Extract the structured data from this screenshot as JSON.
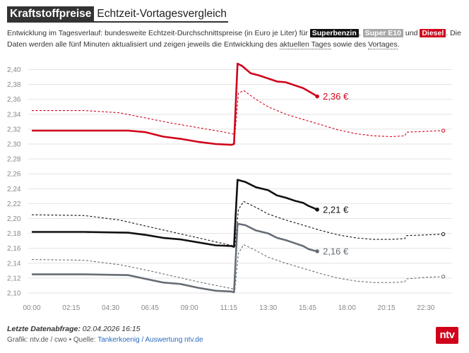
{
  "header": {
    "title_main": "Kraftstoffpreise",
    "title_sub": "Echtzeit-Vortagesvergleich"
  },
  "intro": {
    "text1": "Entwicklung im Tagesverlauf: bundesweite Echtzeit-Durchschnittspreise (in Euro je Liter) für ",
    "tag_super": "Superbenzin",
    "sep1": ", ",
    "tag_e10": "Super E10",
    "sep2": " und ",
    "tag_diesel": "Diesel",
    "text2": ". Die Daten werden alle fünf Minuten aktualisiert und zeigen jeweils die Entwicklung des ",
    "link_today": "aktuellen Tages",
    "text3": " sowie des ",
    "link_yesterday": "Vortages",
    "text4": "."
  },
  "colors": {
    "superbenzin": "#111111",
    "e10": "#666d75",
    "diesel": "#d0021b",
    "grid": "#e3e3e3",
    "axis_text": "#888888"
  },
  "chart_data": {
    "type": "line",
    "xlim": [
      0,
      24
    ],
    "ylim": [
      2.1,
      2.41
    ],
    "x_ticks": [
      0,
      2.25,
      4.5,
      6.75,
      9,
      11.25,
      13.5,
      15.75,
      18,
      20.25,
      22.5
    ],
    "x_tick_labels": [
      "00:00",
      "02:15",
      "04:30",
      "06:45",
      "09:00",
      "11:15",
      "13:30",
      "15:45",
      "18:00",
      "20:15",
      "22:30"
    ],
    "y_ticks": [
      2.1,
      2.12,
      2.14,
      2.16,
      2.18,
      2.2,
      2.22,
      2.24,
      2.26,
      2.28,
      2.3,
      2.32,
      2.34,
      2.36,
      2.38,
      2.4
    ],
    "y_tick_labels": [
      "2,10",
      "2,12",
      "2,14",
      "2,16",
      "2,18",
      "2,20",
      "2,22",
      "2,24",
      "2,26",
      "2,28",
      "2,30",
      "2,32",
      "2,34",
      "2,36",
      "2,38",
      "2,40"
    ],
    "series": [
      {
        "key": "diesel",
        "day": "today",
        "style": "solid",
        "end_label": "2,36 €",
        "points": [
          [
            0,
            2.318
          ],
          [
            3,
            2.318
          ],
          [
            5.5,
            2.318
          ],
          [
            6.5,
            2.316
          ],
          [
            7.5,
            2.31
          ],
          [
            8.5,
            2.307
          ],
          [
            9.5,
            2.303
          ],
          [
            10.5,
            2.3
          ],
          [
            11.4,
            2.299
          ],
          [
            11.55,
            2.3
          ],
          [
            11.75,
            2.408
          ],
          [
            12,
            2.405
          ],
          [
            12.5,
            2.395
          ],
          [
            13,
            2.392
          ],
          [
            13.5,
            2.388
          ],
          [
            14,
            2.384
          ],
          [
            14.5,
            2.383
          ],
          [
            15,
            2.379
          ],
          [
            15.5,
            2.375
          ],
          [
            15.8,
            2.371
          ],
          [
            16.1,
            2.367
          ],
          [
            16.3,
            2.364
          ]
        ]
      },
      {
        "key": "diesel",
        "day": "yesterday",
        "style": "dashed",
        "end_label": "",
        "points": [
          [
            0,
            2.345
          ],
          [
            3,
            2.345
          ],
          [
            5,
            2.342
          ],
          [
            6.5,
            2.335
          ],
          [
            8,
            2.328
          ],
          [
            9.5,
            2.322
          ],
          [
            11,
            2.316
          ],
          [
            11.6,
            2.313
          ],
          [
            11.8,
            2.368
          ],
          [
            12.1,
            2.372
          ],
          [
            12.8,
            2.36
          ],
          [
            13.5,
            2.35
          ],
          [
            14.5,
            2.34
          ],
          [
            15.5,
            2.333
          ],
          [
            16.5,
            2.326
          ],
          [
            17.5,
            2.319
          ],
          [
            18.5,
            2.314
          ],
          [
            19.5,
            2.311
          ],
          [
            20.5,
            2.31
          ],
          [
            21.3,
            2.311
          ],
          [
            21.4,
            2.316
          ],
          [
            22.5,
            2.317
          ],
          [
            23.5,
            2.318
          ]
        ]
      },
      {
        "key": "superbenzin",
        "day": "today",
        "style": "solid",
        "end_label": "2,21 €",
        "points": [
          [
            0,
            2.182
          ],
          [
            3,
            2.182
          ],
          [
            5.5,
            2.181
          ],
          [
            6.5,
            2.178
          ],
          [
            7.5,
            2.174
          ],
          [
            8.5,
            2.172
          ],
          [
            9.5,
            2.168
          ],
          [
            10.5,
            2.164
          ],
          [
            11.4,
            2.163
          ],
          [
            11.55,
            2.162
          ],
          [
            11.75,
            2.252
          ],
          [
            12.2,
            2.249
          ],
          [
            12.8,
            2.242
          ],
          [
            13.5,
            2.238
          ],
          [
            14,
            2.231
          ],
          [
            14.5,
            2.228
          ],
          [
            15,
            2.224
          ],
          [
            15.5,
            2.221
          ],
          [
            15.8,
            2.217
          ],
          [
            16.1,
            2.214
          ],
          [
            16.3,
            2.212
          ]
        ]
      },
      {
        "key": "superbenzin",
        "day": "yesterday",
        "style": "dashed",
        "end_label": "",
        "points": [
          [
            0,
            2.205
          ],
          [
            3,
            2.204
          ],
          [
            5,
            2.198
          ],
          [
            6.5,
            2.19
          ],
          [
            8,
            2.182
          ],
          [
            9.5,
            2.174
          ],
          [
            11,
            2.166
          ],
          [
            11.6,
            2.163
          ],
          [
            11.8,
            2.212
          ],
          [
            12.1,
            2.223
          ],
          [
            12.8,
            2.215
          ],
          [
            13.5,
            2.206
          ],
          [
            14.5,
            2.198
          ],
          [
            15.5,
            2.191
          ],
          [
            16.5,
            2.184
          ],
          [
            17.5,
            2.178
          ],
          [
            18.5,
            2.174
          ],
          [
            19.5,
            2.172
          ],
          [
            20.5,
            2.172
          ],
          [
            21.3,
            2.173
          ],
          [
            21.4,
            2.177
          ],
          [
            22.5,
            2.178
          ],
          [
            23.5,
            2.179
          ]
        ]
      },
      {
        "key": "e10",
        "day": "today",
        "style": "solid",
        "end_label": "2,16 €",
        "points": [
          [
            0,
            2.125
          ],
          [
            3,
            2.125
          ],
          [
            5.5,
            2.124
          ],
          [
            6.5,
            2.119
          ],
          [
            7.5,
            2.114
          ],
          [
            8.5,
            2.112
          ],
          [
            9.5,
            2.107
          ],
          [
            10.5,
            2.103
          ],
          [
            11.4,
            2.102
          ],
          [
            11.55,
            2.101
          ],
          [
            11.75,
            2.193
          ],
          [
            12.2,
            2.191
          ],
          [
            12.8,
            2.184
          ],
          [
            13.5,
            2.18
          ],
          [
            14,
            2.174
          ],
          [
            14.5,
            2.171
          ],
          [
            15,
            2.167
          ],
          [
            15.5,
            2.163
          ],
          [
            15.8,
            2.159
          ],
          [
            16.1,
            2.157
          ],
          [
            16.3,
            2.156
          ]
        ]
      },
      {
        "key": "e10",
        "day": "yesterday",
        "style": "dashed",
        "end_label": "",
        "points": [
          [
            0,
            2.145
          ],
          [
            3,
            2.144
          ],
          [
            5,
            2.138
          ],
          [
            6.5,
            2.131
          ],
          [
            8,
            2.123
          ],
          [
            9.5,
            2.115
          ],
          [
            11,
            2.108
          ],
          [
            11.6,
            2.105
          ],
          [
            11.8,
            2.153
          ],
          [
            12.1,
            2.165
          ],
          [
            12.8,
            2.157
          ],
          [
            13.5,
            2.148
          ],
          [
            14.5,
            2.14
          ],
          [
            15.5,
            2.133
          ],
          [
            16.5,
            2.126
          ],
          [
            17.5,
            2.12
          ],
          [
            18.5,
            2.116
          ],
          [
            19.5,
            2.114
          ],
          [
            20.5,
            2.114
          ],
          [
            21.3,
            2.115
          ],
          [
            21.4,
            2.119
          ],
          [
            22.5,
            2.121
          ],
          [
            23.5,
            2.122
          ]
        ]
      }
    ]
  },
  "footer": {
    "label": "Letzte Datenabfrage:",
    "value": " 02.04.2026 16:15",
    "credit": "Grafik: ntv.de / cwo • Quelle: ",
    "source": "Tankerkoenig / Auswertung ntv.de"
  },
  "brand": {
    "logo": "ntv"
  }
}
